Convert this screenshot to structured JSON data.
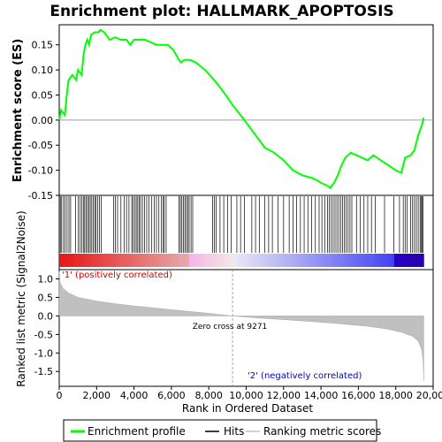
{
  "chart_data": {
    "type": "line",
    "title": "Enrichment plot: HALLMARK_APOPTOSIS",
    "top_panel": {
      "ylabel": "Enrichment score (ES)",
      "ylim": [
        -0.15,
        0.19
      ],
      "yticks": [
        "0.15",
        "0.10",
        "0.05",
        "0.00",
        "-0.05",
        "-0.10",
        "-0.15"
      ],
      "ytick_values": [
        0.15,
        0.1,
        0.05,
        0.0,
        -0.05,
        -0.1,
        -0.15
      ],
      "series": [
        {
          "name": "Enrichment profile",
          "color": "#00ff00",
          "points": [
            [
              0,
              0.0
            ],
            [
              100,
              0.02
            ],
            [
              300,
              0.01
            ],
            [
              400,
              0.05
            ],
            [
              500,
              0.08
            ],
            [
              700,
              0.09
            ],
            [
              900,
              0.08
            ],
            [
              1000,
              0.1
            ],
            [
              1200,
              0.09
            ],
            [
              1300,
              0.13
            ],
            [
              1400,
              0.15
            ],
            [
              1500,
              0.16
            ],
            [
              1600,
              0.15
            ],
            [
              1700,
              0.17
            ],
            [
              1900,
              0.175
            ],
            [
              2100,
              0.175
            ],
            [
              2200,
              0.18
            ],
            [
              2400,
              0.175
            ],
            [
              2700,
              0.16
            ],
            [
              3000,
              0.165
            ],
            [
              3300,
              0.16
            ],
            [
              3600,
              0.16
            ],
            [
              3800,
              0.15
            ],
            [
              4000,
              0.16
            ],
            [
              4300,
              0.16
            ],
            [
              4600,
              0.16
            ],
            [
              4900,
              0.155
            ],
            [
              5200,
              0.15
            ],
            [
              5500,
              0.15
            ],
            [
              5800,
              0.15
            ],
            [
              6100,
              0.14
            ],
            [
              6400,
              0.12
            ],
            [
              6500,
              0.115
            ],
            [
              6700,
              0.12
            ],
            [
              7000,
              0.12
            ],
            [
              7300,
              0.115
            ],
            [
              7800,
              0.1
            ],
            [
              8400,
              0.075
            ],
            [
              9000,
              0.045
            ],
            [
              9271,
              0.03
            ],
            [
              9800,
              0.005
            ],
            [
              10400,
              -0.025
            ],
            [
              11000,
              -0.055
            ],
            [
              11500,
              -0.065
            ],
            [
              12000,
              -0.08
            ],
            [
              12500,
              -0.1
            ],
            [
              13000,
              -0.11
            ],
            [
              13500,
              -0.115
            ],
            [
              13800,
              -0.12
            ],
            [
              14000,
              -0.125
            ],
            [
              14300,
              -0.13
            ],
            [
              14500,
              -0.135
            ],
            [
              14700,
              -0.125
            ],
            [
              14900,
              -0.11
            ],
            [
              15100,
              -0.09
            ],
            [
              15300,
              -0.075
            ],
            [
              15600,
              -0.065
            ],
            [
              15900,
              -0.07
            ],
            [
              16200,
              -0.075
            ],
            [
              16500,
              -0.08
            ],
            [
              16800,
              -0.07
            ],
            [
              17200,
              -0.08
            ],
            [
              17600,
              -0.09
            ],
            [
              18000,
              -0.1
            ],
            [
              18300,
              -0.105
            ],
            [
              18500,
              -0.075
            ],
            [
              18800,
              -0.07
            ],
            [
              19000,
              -0.06
            ],
            [
              19200,
              -0.03
            ],
            [
              19400,
              -0.01
            ],
            [
              19500,
              0.005
            ]
          ]
        }
      ]
    },
    "hits_panel": {
      "series_name": "Hits",
      "hit_positions": [
        60,
        130,
        230,
        320,
        420,
        520,
        610,
        880,
        1010,
        1120,
        1210,
        1290,
        1360,
        1430,
        1510,
        1580,
        1660,
        1740,
        1820,
        1900,
        1960,
        2050,
        2150,
        2250,
        2900,
        3000,
        3120,
        3300,
        3470,
        3600,
        3730,
        3880,
        3950,
        4050,
        4120,
        4200,
        4280,
        4350,
        4450,
        4560,
        4680,
        4800,
        4950,
        5080,
        5200,
        5330,
        5460,
        5560,
        5620,
        5720,
        6400,
        6480,
        6560,
        6640,
        6720,
        6800,
        6880,
        6950,
        7050,
        7140,
        8200,
        8300,
        8400,
        8600,
        8800,
        9000,
        9200,
        9500,
        9700,
        9900,
        10300,
        10500,
        10700,
        11000,
        11200,
        11400,
        11700,
        12000,
        12300,
        12500,
        12700,
        12900,
        13100,
        13300,
        13500,
        13700,
        13900,
        14050,
        14200,
        14350,
        14450,
        14550,
        14650,
        14750,
        14850,
        14950,
        15050,
        15150,
        15250,
        15350,
        15450,
        15550,
        15650,
        15900,
        16100,
        16300,
        16500,
        16700,
        16900,
        17400,
        17900,
        18200,
        18400,
        18500,
        18600,
        18800,
        18900,
        19000,
        19100,
        19200,
        19300,
        19350,
        19400,
        19450
      ]
    },
    "bottom_panel": {
      "ylabel": "Ranked list metric (Signal2Noise)",
      "xlabel": "Rank in Ordered Dataset",
      "ylim": [
        -1.9,
        1.25
      ],
      "yticks": [
        "1.0",
        "0.5",
        "0.0",
        "-0.5",
        "-1.0",
        "-1.5"
      ],
      "ytick_values": [
        1.0,
        0.5,
        0.0,
        -0.5,
        -1.0,
        -1.5
      ],
      "series_name": "Ranking metric scores",
      "metric_points": [
        [
          0,
          1.2
        ],
        [
          50,
          0.9
        ],
        [
          200,
          0.75
        ],
        [
          500,
          0.62
        ],
        [
          1000,
          0.5
        ],
        [
          2000,
          0.4
        ],
        [
          3000,
          0.33
        ],
        [
          4000,
          0.27
        ],
        [
          5000,
          0.22
        ],
        [
          6000,
          0.17
        ],
        [
          7000,
          0.12
        ],
        [
          8000,
          0.07
        ],
        [
          9271,
          0.0
        ],
        [
          10500,
          -0.05
        ],
        [
          12000,
          -0.1
        ],
        [
          13500,
          -0.15
        ],
        [
          15000,
          -0.21
        ],
        [
          16500,
          -0.28
        ],
        [
          17500,
          -0.35
        ],
        [
          18300,
          -0.44
        ],
        [
          18900,
          -0.55
        ],
        [
          19200,
          -0.68
        ],
        [
          19380,
          -0.9
        ],
        [
          19460,
          -1.2
        ],
        [
          19500,
          -1.75
        ]
      ],
      "zero_cross_label": "Zero cross at 9271",
      "zero_cross": 9271,
      "positive_label": "'1' (positively correlated)",
      "negative_label": "'2' (negatively correlated)"
    },
    "xlim": [
      0,
      20000
    ],
    "xticks": [
      "0",
      "2,000",
      "4,000",
      "6,000",
      "8,000",
      "10,000",
      "12,000",
      "14,000",
      "16,000",
      "18,000",
      "20,000"
    ],
    "xtick_values": [
      0,
      2000,
      4000,
      6000,
      8000,
      10000,
      12000,
      14000,
      16000,
      18000,
      20000
    ],
    "n_genes": 19500,
    "legend": {
      "placement": "bottom",
      "entries": [
        {
          "label": "Enrichment profile",
          "color": "#00ff00"
        },
        {
          "label": "Hits",
          "color": "#000000"
        },
        {
          "label": "Ranking metric scores",
          "color": "#c0c0c0"
        }
      ]
    },
    "colors": {
      "profile": "#00ff00",
      "metric_fill": "#c0c0c0",
      "positive_label": "#cc0000",
      "negative_label": "#0000cc",
      "zero_line": "#808080"
    }
  }
}
